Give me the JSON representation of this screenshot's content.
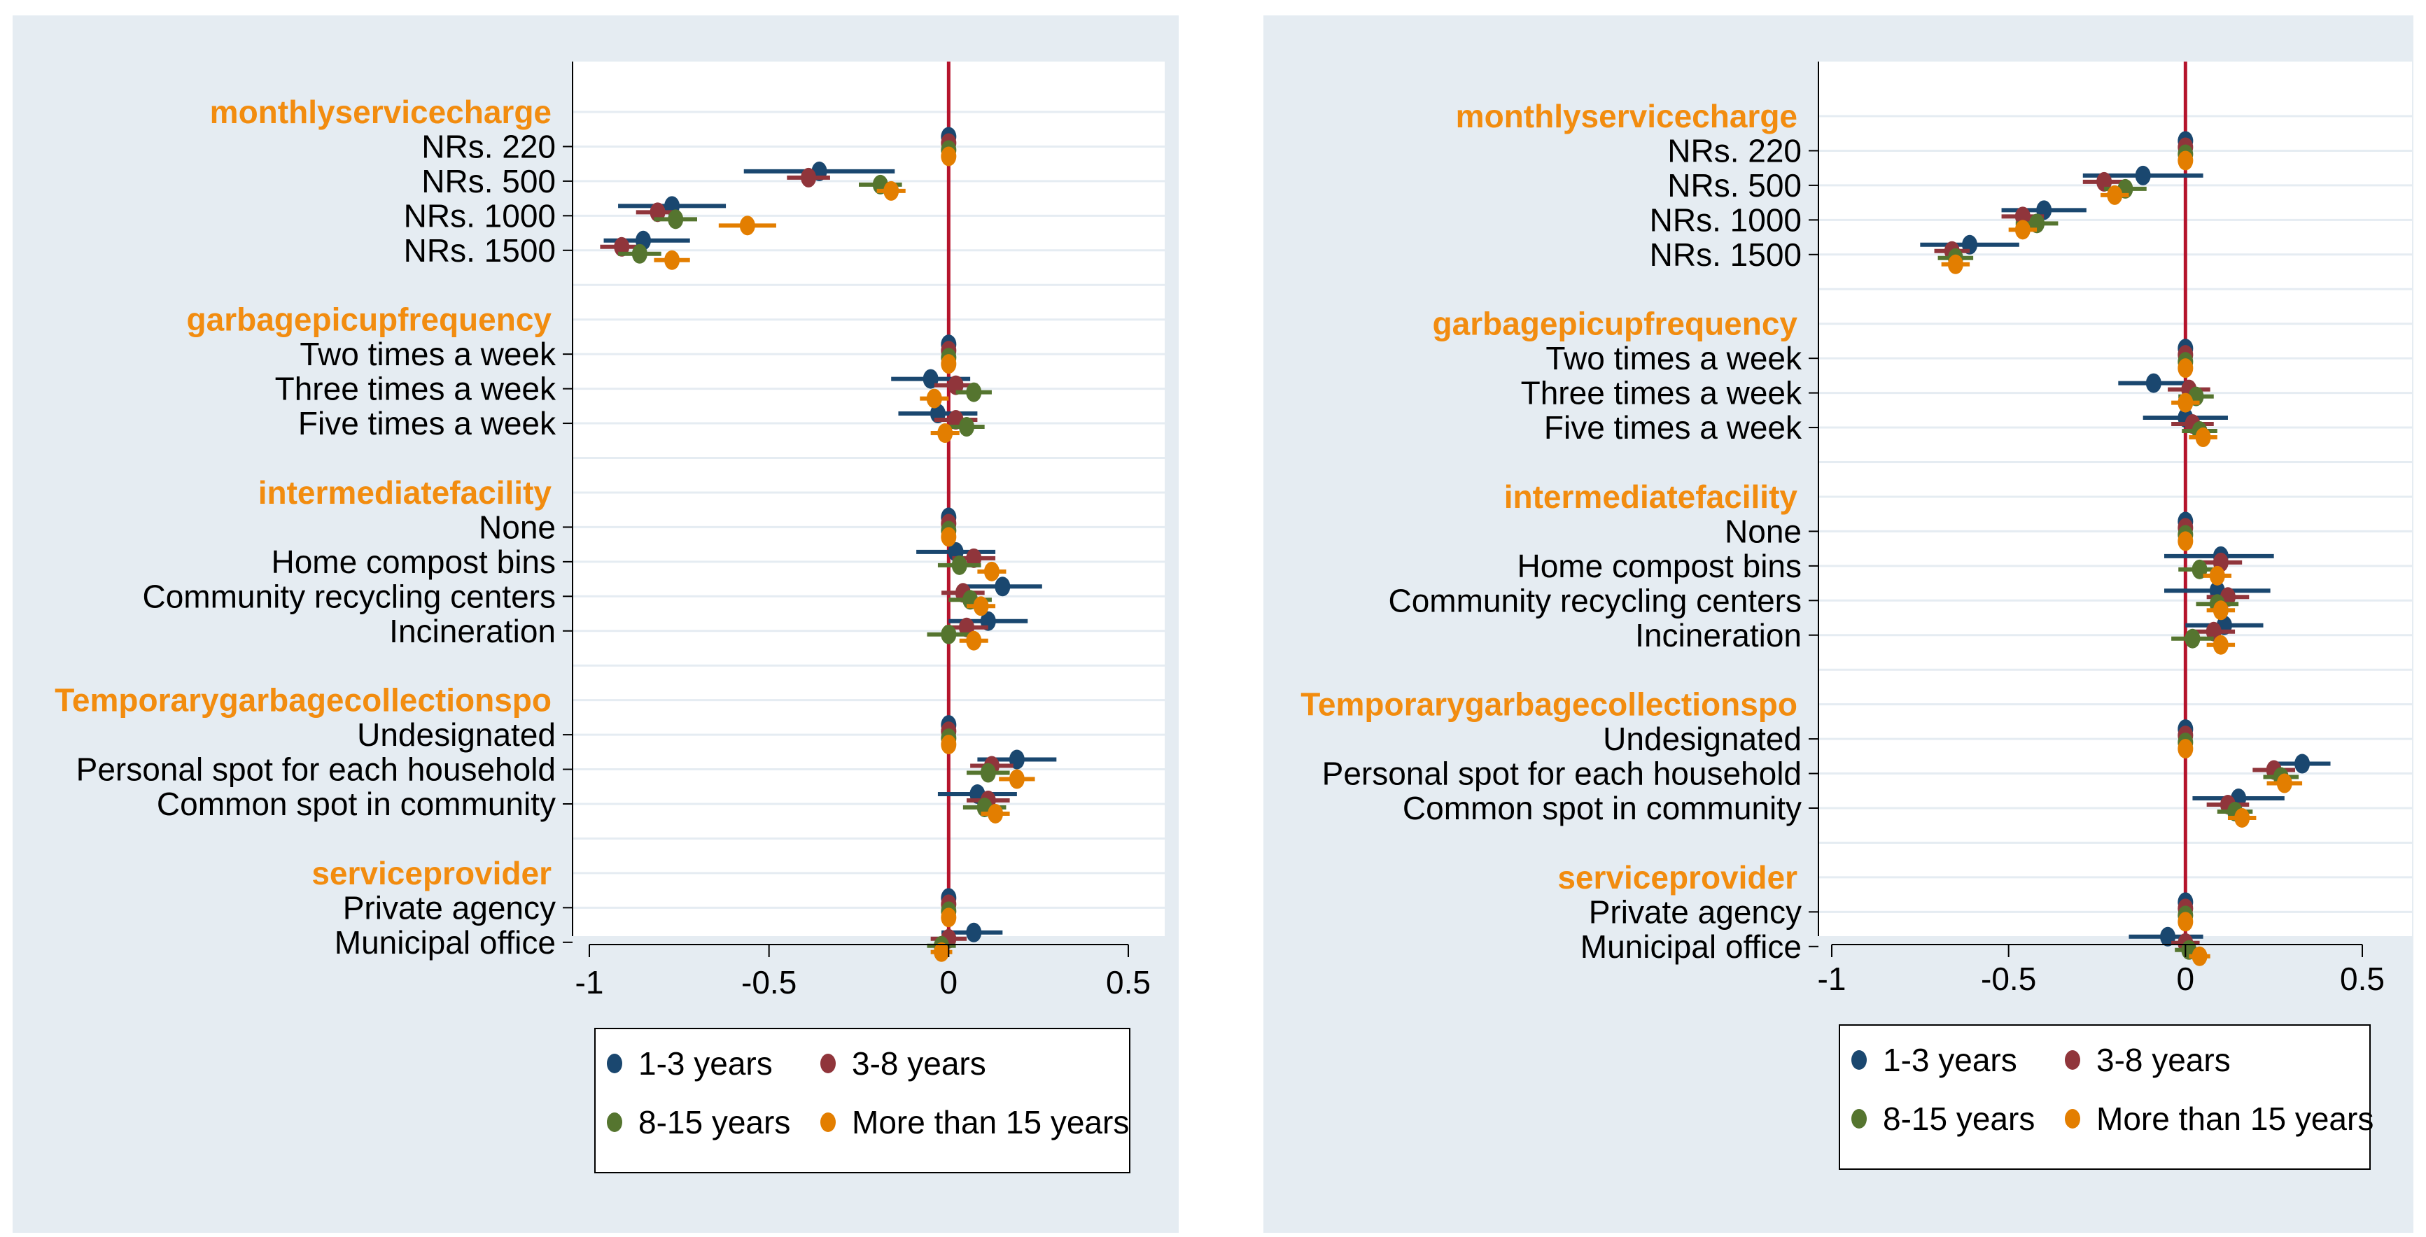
{
  "colors": {
    "panel_bg": "#e5ecf2",
    "plot_bg": "#ffffff",
    "grid": "#e5ecf2",
    "zero_line": "#b5142c",
    "header": "#f28c0f",
    "text": "#000000"
  },
  "groups": [
    {
      "header": "monthlyservicecharge",
      "levels": [
        "NRs. 220",
        "NRs. 500",
        "NRs. 1000",
        "NRs. 1500"
      ]
    },
    {
      "header": "garbagepicupfrequency",
      "levels": [
        "Two times a week",
        "Three times a week",
        "Five times a week"
      ]
    },
    {
      "header": "intermediatefacility",
      "levels": [
        "None",
        "Home compost bins",
        "Community recycling centers",
        "Incineration"
      ]
    },
    {
      "header": "Temporarygarbagecollectionspo",
      "levels": [
        "Undesignated",
        "Personal spot for each household",
        "Common spot in community"
      ]
    },
    {
      "header": "serviceprovider",
      "levels": [
        "Private agency",
        "Municipal office"
      ]
    }
  ],
  "legend": {
    "items": [
      {
        "label": "1-3 years",
        "color": "#1a476f"
      },
      {
        "label": "3-8 years",
        "color": "#90353b"
      },
      {
        "label": "8-15 years",
        "color": "#55752f"
      },
      {
        "label": "More than 15 years",
        "color": "#e37e00"
      }
    ]
  },
  "chart_data": [
    {
      "type": "coefficient-plot",
      "xlim": [
        -1,
        0.5
      ],
      "xticks": [
        "-1",
        "-0.5",
        "0",
        "0.5"
      ],
      "reference_line": 0,
      "series": [
        {
          "name": "1-3 years",
          "values": [
            [
              0,
              0,
              0
            ],
            [
              -0.36,
              -0.57,
              -0.15
            ],
            [
              -0.77,
              -0.92,
              -0.62
            ],
            [
              -0.85,
              -0.96,
              -0.72
            ],
            [
              0,
              0,
              0
            ],
            [
              -0.05,
              -0.16,
              0.06
            ],
            [
              -0.03,
              -0.14,
              0.08
            ],
            [
              0,
              0,
              0
            ],
            [
              0.02,
              -0.09,
              0.13
            ],
            [
              0.15,
              0.04,
              0.26
            ],
            [
              0.11,
              0.0,
              0.22
            ],
            [
              0,
              0,
              0
            ],
            [
              0.19,
              0.08,
              0.3
            ],
            [
              0.08,
              -0.03,
              0.19
            ],
            [
              0,
              0,
              0
            ],
            [
              0.07,
              -0.02,
              0.15
            ]
          ]
        },
        {
          "name": "3-8 years",
          "values": [
            [
              0,
              0,
              0
            ],
            [
              -0.39,
              -0.45,
              -0.33
            ],
            [
              -0.81,
              -0.87,
              -0.75
            ],
            [
              -0.91,
              -0.97,
              -0.85
            ],
            [
              0,
              0,
              0
            ],
            [
              0.02,
              -0.04,
              0.08
            ],
            [
              0.02,
              -0.04,
              0.08
            ],
            [
              0,
              0,
              0
            ],
            [
              0.07,
              0.01,
              0.13
            ],
            [
              0.04,
              -0.02,
              0.1
            ],
            [
              0.05,
              -0.01,
              0.11
            ],
            [
              0,
              0,
              0
            ],
            [
              0.12,
              0.06,
              0.18
            ],
            [
              0.11,
              0.05,
              0.17
            ],
            [
              0,
              0,
              0
            ],
            [
              0.0,
              -0.05,
              0.05
            ]
          ]
        },
        {
          "name": "8-15 years",
          "values": [
            [
              0,
              0,
              0
            ],
            [
              -0.19,
              -0.25,
              -0.13
            ],
            [
              -0.76,
              -0.82,
              -0.7
            ],
            [
              -0.86,
              -0.92,
              -0.8
            ],
            [
              0,
              0,
              0
            ],
            [
              0.07,
              0.02,
              0.12
            ],
            [
              0.05,
              0.0,
              0.1
            ],
            [
              0,
              0,
              0
            ],
            [
              0.03,
              -0.03,
              0.09
            ],
            [
              0.06,
              0.0,
              0.12
            ],
            [
              0.0,
              -0.06,
              0.06
            ],
            [
              0,
              0,
              0
            ],
            [
              0.11,
              0.05,
              0.17
            ],
            [
              0.1,
              0.04,
              0.16
            ],
            [
              0,
              0,
              0
            ],
            [
              -0.02,
              -0.06,
              0.02
            ]
          ]
        },
        {
          "name": "More than 15 years",
          "values": [
            [
              0,
              0,
              0
            ],
            [
              -0.16,
              -0.2,
              -0.12
            ],
            [
              -0.56,
              -0.64,
              -0.48
            ],
            [
              -0.77,
              -0.82,
              -0.72
            ],
            [
              0,
              0,
              0
            ],
            [
              -0.04,
              -0.08,
              0.0
            ],
            [
              -0.01,
              -0.05,
              0.03
            ],
            [
              0,
              0,
              0
            ],
            [
              0.12,
              0.08,
              0.16
            ],
            [
              0.09,
              0.05,
              0.13
            ],
            [
              0.07,
              0.03,
              0.11
            ],
            [
              0,
              0,
              0
            ],
            [
              0.19,
              0.14,
              0.24
            ],
            [
              0.13,
              0.09,
              0.17
            ],
            [
              0,
              0,
              0
            ],
            [
              -0.02,
              -0.05,
              0.01
            ]
          ]
        }
      ]
    },
    {
      "type": "coefficient-plot",
      "xlim": [
        -1,
        0.5
      ],
      "xticks": [
        "-1",
        "-0.5",
        "0",
        "0.5"
      ],
      "reference_line": 0,
      "series": [
        {
          "name": "1-3 years",
          "values": [
            [
              0,
              0,
              0
            ],
            [
              -0.12,
              -0.29,
              0.05
            ],
            [
              -0.4,
              -0.52,
              -0.28
            ],
            [
              -0.61,
              -0.75,
              -0.47
            ],
            [
              0,
              0,
              0
            ],
            [
              -0.09,
              -0.19,
              0.01
            ],
            [
              0.0,
              -0.12,
              0.12
            ],
            [
              0,
              0,
              0
            ],
            [
              0.1,
              -0.06,
              0.25
            ],
            [
              0.09,
              -0.06,
              0.24
            ],
            [
              0.11,
              0.0,
              0.22
            ],
            [
              0,
              0,
              0
            ],
            [
              0.33,
              0.25,
              0.41
            ],
            [
              0.15,
              0.02,
              0.28
            ],
            [
              0,
              0,
              0
            ],
            [
              -0.05,
              -0.16,
              0.05
            ]
          ]
        },
        {
          "name": "3-8 years",
          "values": [
            [
              0,
              0,
              0
            ],
            [
              -0.23,
              -0.29,
              -0.17
            ],
            [
              -0.46,
              -0.52,
              -0.4
            ],
            [
              -0.66,
              -0.71,
              -0.61
            ],
            [
              0,
              0,
              0
            ],
            [
              0.01,
              -0.05,
              0.07
            ],
            [
              0.02,
              -0.04,
              0.08
            ],
            [
              0,
              0,
              0
            ],
            [
              0.1,
              0.04,
              0.16
            ],
            [
              0.12,
              0.06,
              0.18
            ],
            [
              0.08,
              0.02,
              0.14
            ],
            [
              0,
              0,
              0
            ],
            [
              0.25,
              0.19,
              0.31
            ],
            [
              0.12,
              0.06,
              0.18
            ],
            [
              0,
              0,
              0
            ],
            [
              0.0,
              -0.04,
              0.04
            ]
          ]
        },
        {
          "name": "8-15 years",
          "values": [
            [
              0,
              0,
              0
            ],
            [
              -0.17,
              -0.23,
              -0.11
            ],
            [
              -0.42,
              -0.48,
              -0.36
            ],
            [
              -0.65,
              -0.7,
              -0.6
            ],
            [
              0,
              0,
              0
            ],
            [
              0.03,
              -0.02,
              0.08
            ],
            [
              0.04,
              -0.01,
              0.09
            ],
            [
              0,
              0,
              0
            ],
            [
              0.04,
              -0.02,
              0.1
            ],
            [
              0.09,
              0.03,
              0.15
            ],
            [
              0.02,
              -0.04,
              0.08
            ],
            [
              0,
              0,
              0
            ],
            [
              0.27,
              0.22,
              0.32
            ],
            [
              0.14,
              0.09,
              0.19
            ],
            [
              0,
              0,
              0
            ],
            [
              0.01,
              -0.03,
              0.05
            ]
          ]
        },
        {
          "name": "More than 15 years",
          "values": [
            [
              0,
              0,
              0
            ],
            [
              -0.2,
              -0.24,
              -0.16
            ],
            [
              -0.46,
              -0.5,
              -0.42
            ],
            [
              -0.65,
              -0.69,
              -0.61
            ],
            [
              0,
              0,
              0
            ],
            [
              0.0,
              -0.04,
              0.04
            ],
            [
              0.05,
              0.01,
              0.09
            ],
            [
              0,
              0,
              0
            ],
            [
              0.09,
              0.05,
              0.13
            ],
            [
              0.1,
              0.06,
              0.14
            ],
            [
              0.1,
              0.06,
              0.14
            ],
            [
              0,
              0,
              0
            ],
            [
              0.28,
              0.23,
              0.33
            ],
            [
              0.16,
              0.12,
              0.2
            ],
            [
              0,
              0,
              0
            ],
            [
              0.04,
              0.01,
              0.07
            ]
          ]
        }
      ]
    }
  ]
}
